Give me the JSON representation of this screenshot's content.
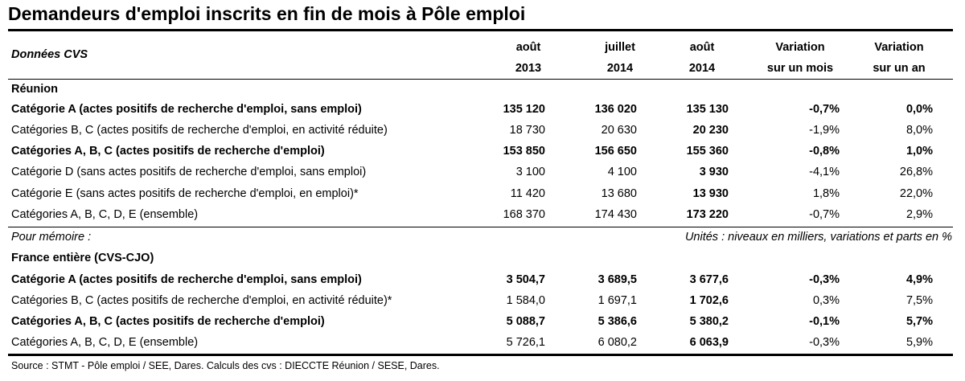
{
  "title": "Demandeurs d'emploi inscrits en fin de mois à Pôle emploi",
  "header": {
    "left": "Données CVS",
    "columns": [
      {
        "line1": "août",
        "line2": "2013"
      },
      {
        "line1": "juillet",
        "line2": "2014"
      },
      {
        "line1": "août",
        "line2": "2014"
      },
      {
        "line1": "Variation",
        "line2": "sur un mois"
      },
      {
        "line1": "Variation",
        "line2": "sur un an"
      }
    ]
  },
  "section_reunion": "Réunion",
  "reunion_rows": [
    {
      "label": "Catégorie A (actes positifs de recherche d'emploi, sans emploi)",
      "v1": "135 120",
      "v2": "136 020",
      "v3": "135 130",
      "v4": "-0,7%",
      "v5": "0,0%"
    },
    {
      "label": "Catégories B, C (actes positifs de recherche d'emploi, en activité réduite)",
      "v1": "18 730",
      "v2": "20 630",
      "v3": "20 230",
      "v4": "-1,9%",
      "v5": "8,0%"
    },
    {
      "label": "Catégories A, B, C (actes positifs de recherche d'emploi)",
      "v1": "153 850",
      "v2": "156 650",
      "v3": "155 360",
      "v4": "-0,8%",
      "v5": "1,0%"
    },
    {
      "label": "Catégorie D (sans actes positifs de recherche d'emploi, sans emploi)",
      "v1": "3 100",
      "v2": "4 100",
      "v3": "3 930",
      "v4": "-4,1%",
      "v5": "26,8%"
    },
    {
      "label": "Catégorie E (sans actes positifs de recherche d'emploi, en emploi)*",
      "v1": "11 420",
      "v2": "13 680",
      "v3": "13 930",
      "v4": "1,8%",
      "v5": "22,0%"
    },
    {
      "label": "Catégories A, B, C, D, E (ensemble)",
      "v1": "168 370",
      "v2": "174 430",
      "v3": "173 220",
      "v4": "-0,7%",
      "v5": "2,9%"
    }
  ],
  "pour_memoire": "Pour mémoire :",
  "units_note": "Unités : niveaux en milliers, variations et parts en %",
  "section_france": "France entière (CVS-CJO)",
  "france_rows": [
    {
      "label": "Catégorie A (actes positifs de recherche d'emploi, sans emploi)",
      "v1": "3 504,7",
      "v2": "3 689,5",
      "v3": "3 677,6",
      "v4": "-0,3%",
      "v5": "4,9%"
    },
    {
      "label": "Catégories B, C (actes positifs de recherche d'emploi, en activité réduite)*",
      "v1": "1 584,0",
      "v2": "1 697,1",
      "v3": "1 702,6",
      "v4": "0,3%",
      "v5": "7,5%"
    },
    {
      "label": "Catégories A, B, C (actes positifs de recherche d'emploi)",
      "v1": "5 088,7",
      "v2": "5 386,6",
      "v3": "5 380,2",
      "v4": "-0,1%",
      "v5": "5,7%"
    },
    {
      "label": "Catégories A, B, C, D, E (ensemble)",
      "v1": "5 726,1",
      "v2": "6 080,2",
      "v3": "6 063,9",
      "v4": "-0,3%",
      "v5": "5,9%"
    }
  ],
  "source": "Source : STMT - Pôle emploi / SEE, Dares. Calculs des cvs : DIECCTE Réunion / SESE, Dares."
}
